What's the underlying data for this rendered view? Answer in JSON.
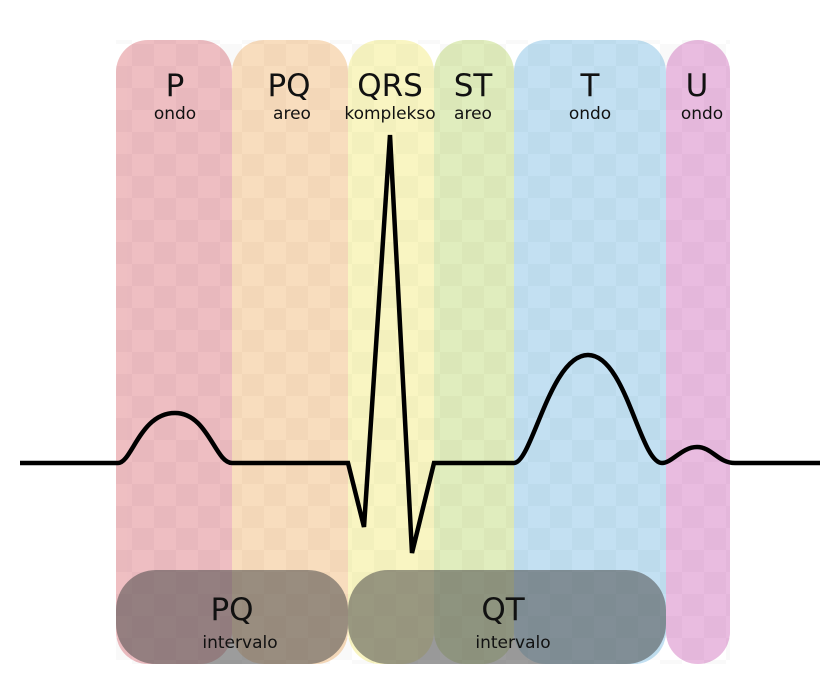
{
  "segments": [
    {
      "label": "P",
      "sublabel": "ondo"
    },
    {
      "label": "PQ",
      "sublabel": "areo"
    },
    {
      "label": "QRS",
      "sublabel": "komplekso"
    },
    {
      "label": "ST",
      "sublabel": "areo"
    },
    {
      "label": "T",
      "sublabel": "ondo"
    },
    {
      "label": "U",
      "sublabel": "ondo"
    }
  ],
  "intervals": [
    {
      "label": "PQ",
      "sublabel": "intervalo"
    },
    {
      "label": "QT",
      "sublabel": "intervalo"
    }
  ]
}
